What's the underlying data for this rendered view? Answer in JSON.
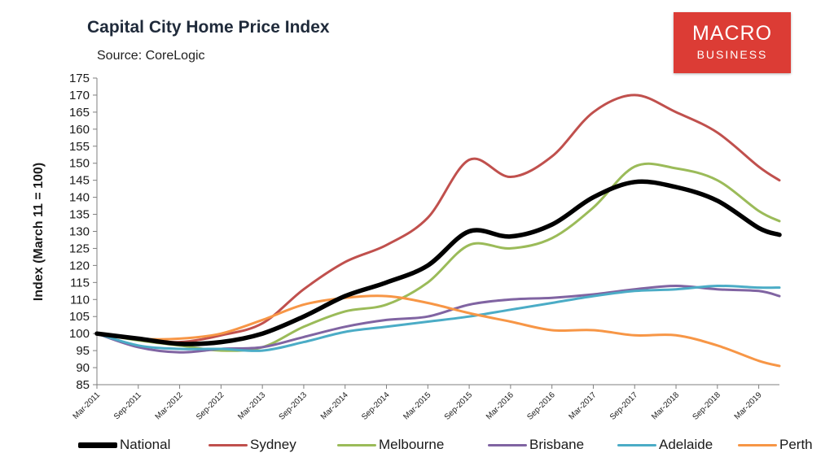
{
  "header": {
    "title": "Capital City Home Price Index",
    "subtitle": "Source: CoreLogic"
  },
  "logo": {
    "line1": "MACRO",
    "line2": "BUSINESS",
    "color": "#dc3c35"
  },
  "chart_data": {
    "type": "line",
    "title": "Capital City Home Price Index",
    "subtitle": "Source: CoreLogic",
    "ylabel": "Index (March 11 = 100)",
    "xlabel": "",
    "ylim": [
      85,
      175
    ],
    "ytick_step": 5,
    "x_start": "Mar-2011",
    "x_end": "Jun-2019",
    "x_tick_labels": [
      "Mar-2011",
      "Sep-2011",
      "Mar-2012",
      "Sep-2012",
      "Mar-2013",
      "Sep-2013",
      "Mar-2014",
      "Sep-2014",
      "Mar-2015",
      "Sep-2015",
      "Mar-2016",
      "Sep-2016",
      "Mar-2017",
      "Sep-2017",
      "Mar-2018",
      "Sep-2018",
      "Mar-2019"
    ],
    "grid": false,
    "legend_position": "bottom",
    "x": [
      "Mar-2011",
      "Sep-2011",
      "Mar-2012",
      "Sep-2012",
      "Mar-2013",
      "Sep-2013",
      "Mar-2014",
      "Sep-2014",
      "Mar-2015",
      "Sep-2015",
      "Mar-2016",
      "Sep-2016",
      "Mar-2017",
      "Sep-2017",
      "Mar-2018",
      "Sep-2018",
      "Mar-2019",
      "Jun-2019"
    ],
    "series": [
      {
        "name": "National",
        "color": "#000000",
        "width": 5.5,
        "values": [
          100,
          98.5,
          97,
          97.5,
          100,
          105,
          111,
          115,
          120,
          130,
          128.5,
          132,
          140,
          144.5,
          143,
          139,
          131,
          129
        ]
      },
      {
        "name": "Sydney",
        "color": "#c0504d",
        "width": 3,
        "values": [
          100,
          98.5,
          97.5,
          99.5,
          103,
          113,
          121,
          126,
          134,
          151,
          146,
          152,
          165,
          170,
          165,
          159,
          149,
          145
        ]
      },
      {
        "name": "Melbourne",
        "color": "#9bbb59",
        "width": 3,
        "values": [
          100,
          98,
          96.5,
          95,
          96,
          102,
          106.5,
          108.5,
          115,
          126,
          125,
          128,
          137,
          149,
          148.5,
          145,
          136,
          133
        ]
      },
      {
        "name": "Brisbane",
        "color": "#8064a2",
        "width": 3,
        "values": [
          100,
          96,
          94.5,
          95.5,
          96,
          99,
          102,
          104,
          105,
          108.5,
          110,
          110.5,
          111.5,
          113,
          114,
          113,
          112.5,
          111
        ]
      },
      {
        "name": "Adelaide",
        "color": "#4bacc6",
        "width": 3,
        "values": [
          100,
          96.5,
          95.5,
          95.5,
          95,
          97.5,
          100.5,
          102,
          103.5,
          105,
          107,
          109,
          111,
          112.5,
          113,
          114,
          113.5,
          113.5
        ]
      },
      {
        "name": "Perth",
        "color": "#f79646",
        "width": 3,
        "values": [
          100,
          98.5,
          98.5,
          100,
          104,
          108.5,
          110.5,
          111,
          109,
          106,
          103.5,
          101,
          101,
          99.5,
          99.5,
          96.5,
          92,
          90.5
        ]
      }
    ]
  }
}
